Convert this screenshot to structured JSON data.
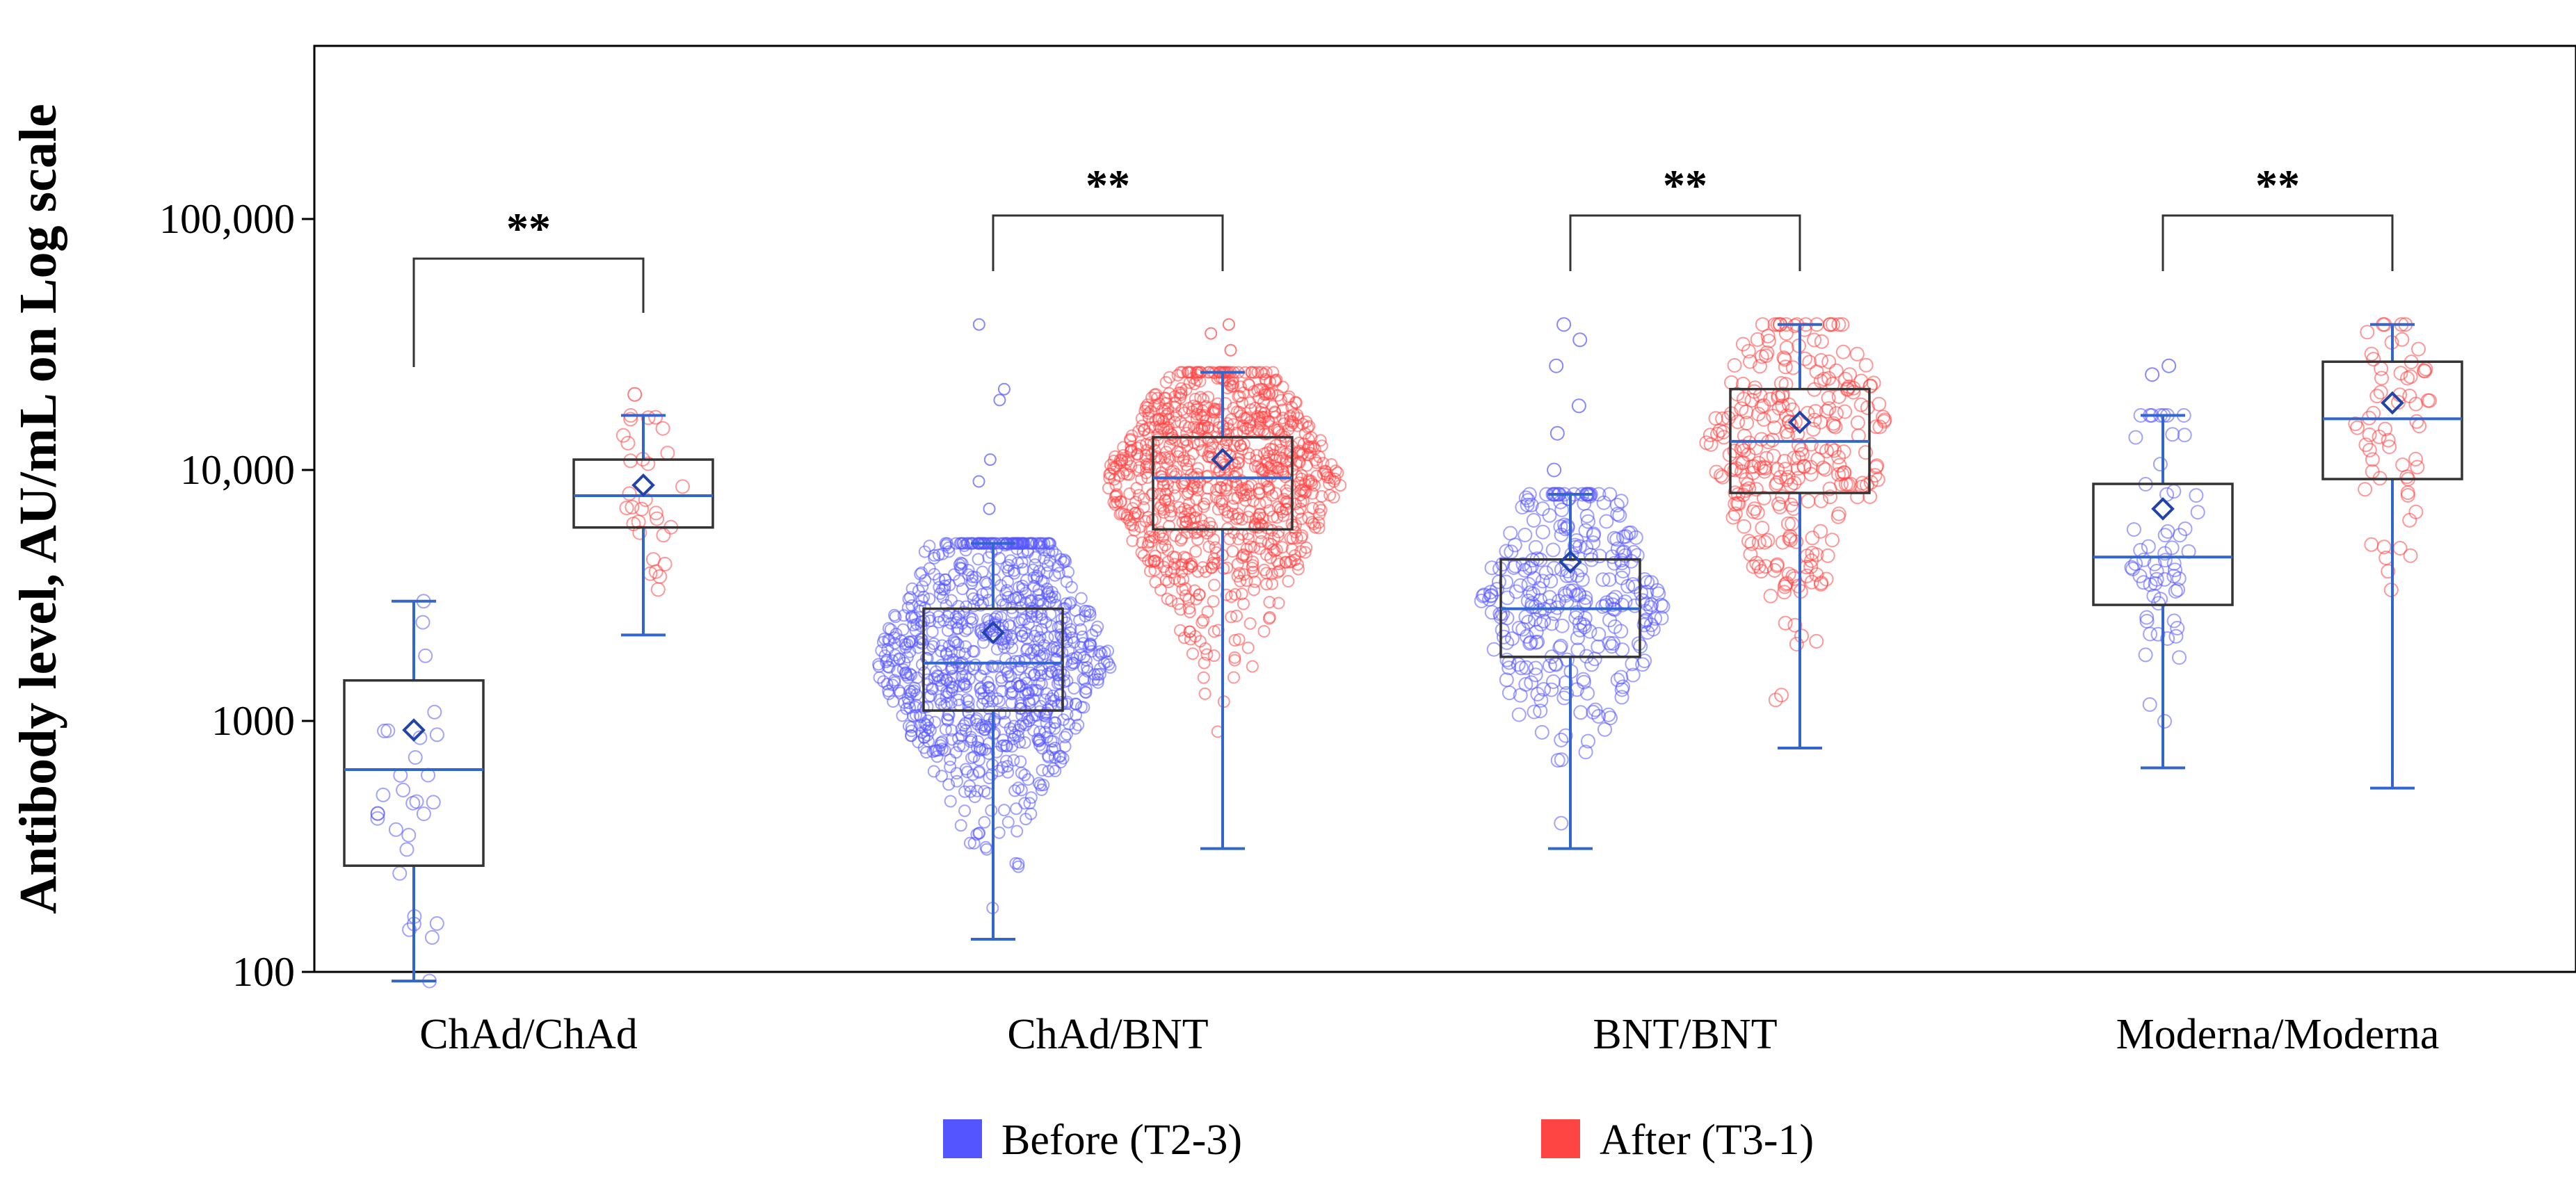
{
  "chart_data": {
    "type": "box",
    "y_axis": {
      "label": "Antibody level, AU/mL on Log scale",
      "scale": "log",
      "range": [
        100,
        500000
      ],
      "ticks": [
        {
          "value": 100,
          "label": "100"
        },
        {
          "value": 1000,
          "label": "1000"
        },
        {
          "value": 10000,
          "label": "10,000"
        },
        {
          "value": 100000,
          "label": "100,000"
        }
      ]
    },
    "legend": {
      "position": "bottom",
      "entries": [
        {
          "name": "Before (T2-3)",
          "color": "#5555ff"
        },
        {
          "name": "After (T3-1)",
          "color": "#ff4444"
        }
      ]
    },
    "significance_label": "**",
    "groups": [
      {
        "label": "ChAd/ChAd",
        "before": {
          "n": 30,
          "whisker_low": 92,
          "q1": 265,
          "median": 640,
          "q3": 1450,
          "whisker_high": 3000,
          "mean": 920
        },
        "after": {
          "n": 30,
          "whisker_low": 2200,
          "q1": 5900,
          "median": 7900,
          "q3": 11000,
          "whisker_high": 16500,
          "mean": 8700,
          "outliers_high": [
            20000
          ]
        }
      },
      {
        "label": "ChAd/BNT",
        "before": {
          "n": 900,
          "whisker_low": 135,
          "q1": 1100,
          "median": 1700,
          "q3": 2800,
          "whisker_high": 5100,
          "mean": 2250,
          "outliers_high": [
            7000,
            9000,
            11000,
            19000,
            21000,
            38000
          ]
        },
        "after": {
          "n": 900,
          "whisker_low": 310,
          "q1": 5800,
          "median": 9300,
          "q3": 13500,
          "whisker_high": 24500,
          "mean": 11000,
          "outliers_high": [
            30000,
            35000,
            38000
          ]
        }
      },
      {
        "label": "BNT/BNT",
        "before": {
          "n": 300,
          "whisker_low": 310,
          "q1": 1800,
          "median": 2800,
          "q3": 4400,
          "whisker_high": 8000,
          "mean": 4300,
          "outliers_high": [
            10000,
            14000,
            18000,
            26000,
            33000,
            38000
          ]
        },
        "after": {
          "n": 300,
          "whisker_low": 780,
          "q1": 8100,
          "median": 13000,
          "q3": 21000,
          "whisker_high": 38000,
          "mean": 15500
        }
      },
      {
        "label": "Moderna/Moderna",
        "before": {
          "n": 60,
          "whisker_low": 650,
          "q1": 2900,
          "median": 4500,
          "q3": 8800,
          "whisker_high": 16500,
          "mean": 7000,
          "outliers_high": [
            24000,
            26000
          ]
        },
        "after": {
          "n": 60,
          "whisker_low": 540,
          "q1": 9200,
          "median": 16000,
          "q3": 27000,
          "whisker_high": 38000,
          "mean": 18500
        }
      }
    ]
  }
}
